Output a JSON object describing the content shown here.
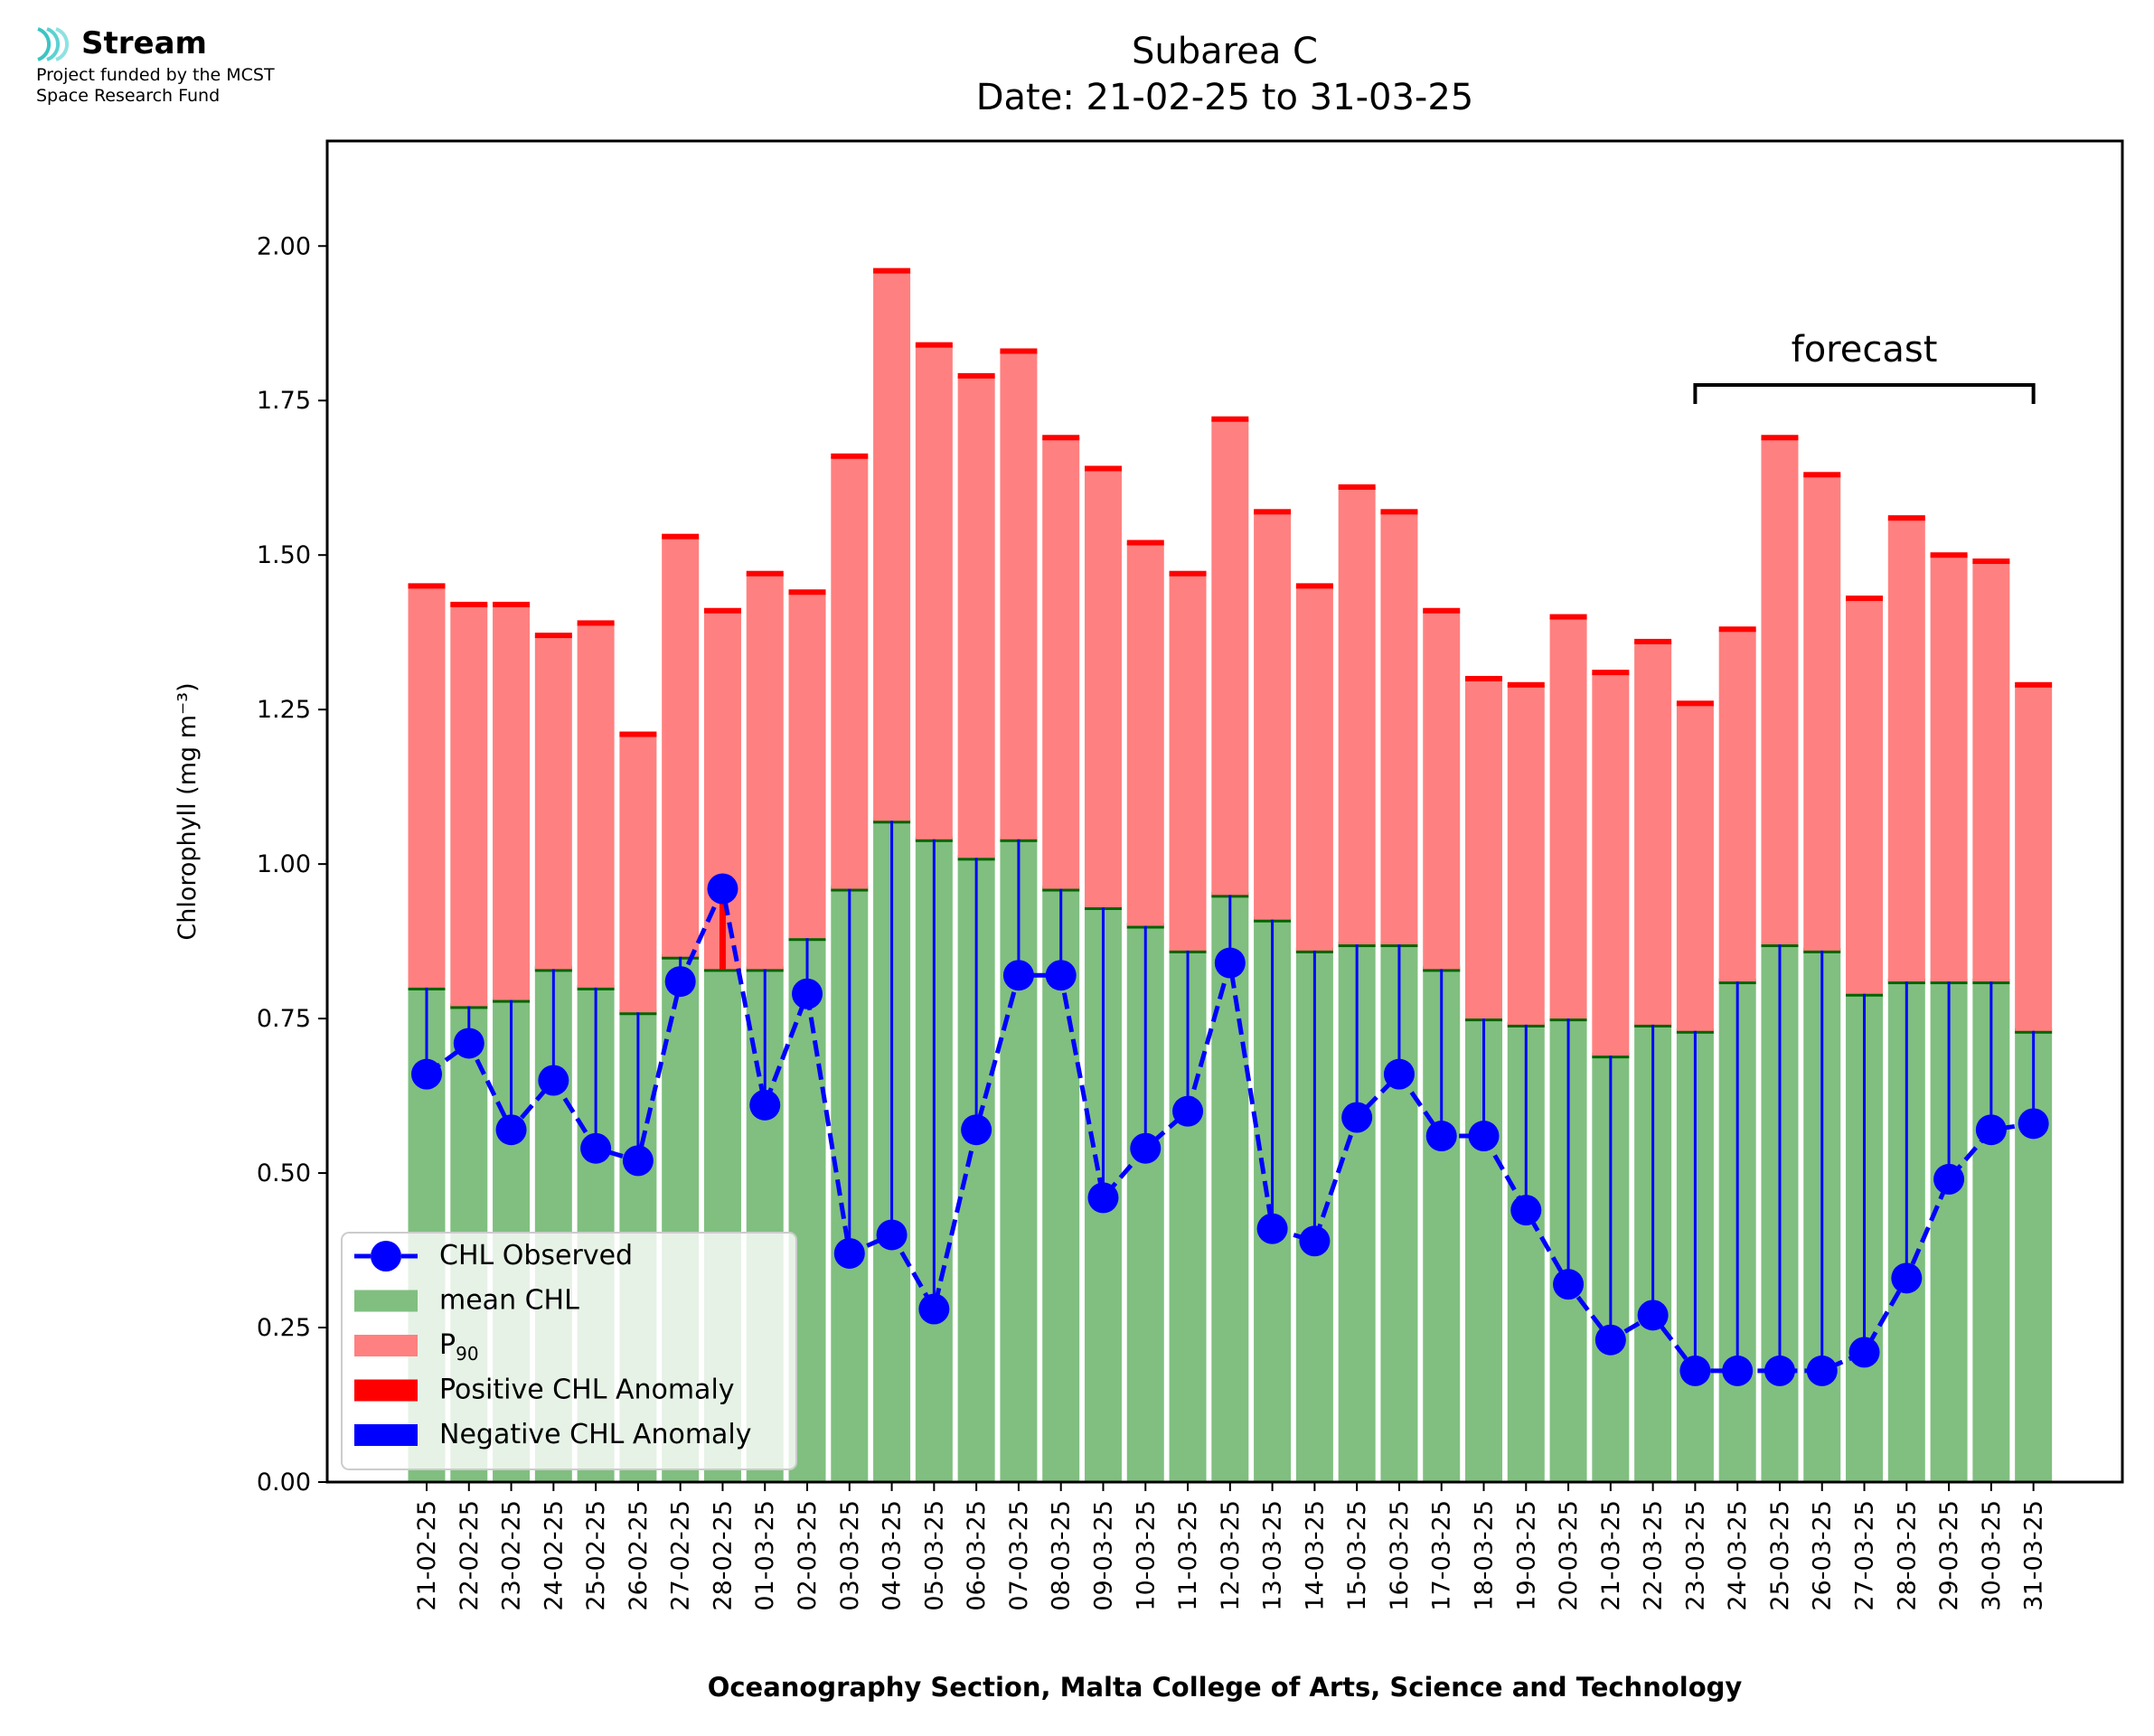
{
  "logo": {
    "name": "Stream",
    "line1": "Project funded by the MCST",
    "line2": "Space Research Fund",
    "icon": "stream-waves-icon"
  },
  "chart_data": {
    "type": "bar",
    "title": "Subarea C",
    "subtitle": "Date: 21-02-25 to 31-03-25",
    "xlabel": "Oceanography Section, Malta College of Arts, Science and Technology",
    "ylabel": "Chlorophyll (mg m⁻³)",
    "ylim": [
      0,
      2.17
    ],
    "yticks": [
      "0.00",
      "0.25",
      "0.50",
      "0.75",
      "1.00",
      "1.25",
      "1.50",
      "1.75",
      "2.00"
    ],
    "grid": false,
    "legend_position": "lower-left",
    "annotation": {
      "text": "forecast",
      "from": "23-03-25",
      "to": "31-03-25"
    },
    "categories": [
      "21-02-25",
      "22-02-25",
      "23-02-25",
      "24-02-25",
      "25-02-25",
      "26-02-25",
      "27-02-25",
      "28-02-25",
      "01-03-25",
      "02-03-25",
      "03-03-25",
      "04-03-25",
      "05-03-25",
      "06-03-25",
      "07-03-25",
      "08-03-25",
      "09-03-25",
      "10-03-25",
      "11-03-25",
      "12-03-25",
      "13-03-25",
      "14-03-25",
      "15-03-25",
      "16-03-25",
      "17-03-25",
      "18-03-25",
      "19-03-25",
      "20-03-25",
      "21-03-25",
      "22-03-25",
      "23-03-25",
      "24-03-25",
      "25-03-25",
      "26-03-25",
      "27-03-25",
      "28-03-25",
      "29-03-25",
      "30-03-25",
      "31-03-25"
    ],
    "series": [
      {
        "name": "mean CHL",
        "color": "#80bf80",
        "edge_color": "#006400",
        "values": [
          0.8,
          0.77,
          0.78,
          0.83,
          0.8,
          0.76,
          0.85,
          0.83,
          0.83,
          0.88,
          0.96,
          1.07,
          1.04,
          1.01,
          1.04,
          0.96,
          0.93,
          0.9,
          0.86,
          0.95,
          0.91,
          0.86,
          0.87,
          0.87,
          0.83,
          0.75,
          0.74,
          0.75,
          0.69,
          0.74,
          0.73,
          0.81,
          0.87,
          0.86,
          0.79,
          0.81,
          0.81,
          0.81,
          0.73
        ]
      },
      {
        "name": "P₉₀",
        "color": "#ff8080",
        "edge_color": "#ff0000",
        "values": [
          1.45,
          1.42,
          1.42,
          1.37,
          1.39,
          1.21,
          1.53,
          1.41,
          1.47,
          1.44,
          1.66,
          1.96,
          1.84,
          1.79,
          1.83,
          1.69,
          1.64,
          1.52,
          1.47,
          1.72,
          1.57,
          1.45,
          1.61,
          1.57,
          1.41,
          1.3,
          1.29,
          1.4,
          1.31,
          1.36,
          1.26,
          1.38,
          1.69,
          1.63,
          1.43,
          1.56,
          1.5,
          1.49,
          1.29
        ]
      },
      {
        "name": "CHL Observed",
        "color": "#0000ff",
        "values": [
          0.66,
          0.71,
          0.57,
          0.65,
          0.54,
          0.52,
          0.81,
          0.96,
          0.61,
          0.79,
          0.37,
          0.4,
          0.28,
          0.57,
          0.82,
          0.82,
          0.46,
          0.54,
          0.6,
          0.84,
          0.41,
          0.39,
          0.59,
          0.66,
          0.56,
          0.56,
          0.44,
          0.32,
          0.23,
          0.27,
          0.18,
          0.18,
          0.18,
          0.18,
          0.21,
          0.33,
          0.49,
          0.57,
          0.58
        ]
      }
    ],
    "legend": [
      {
        "label": "CHL Observed",
        "kind": "line-marker",
        "color": "#0000ff"
      },
      {
        "label": "mean CHL",
        "kind": "patch",
        "color": "#80bf80"
      },
      {
        "label": "P",
        "sub": "90",
        "kind": "patch",
        "color": "#ff8080"
      },
      {
        "label": "Positive CHL Anomaly",
        "kind": "patch",
        "color": "#ff0000"
      },
      {
        "label": "Negative CHL Anomaly",
        "kind": "patch",
        "color": "#0000ff"
      }
    ]
  }
}
